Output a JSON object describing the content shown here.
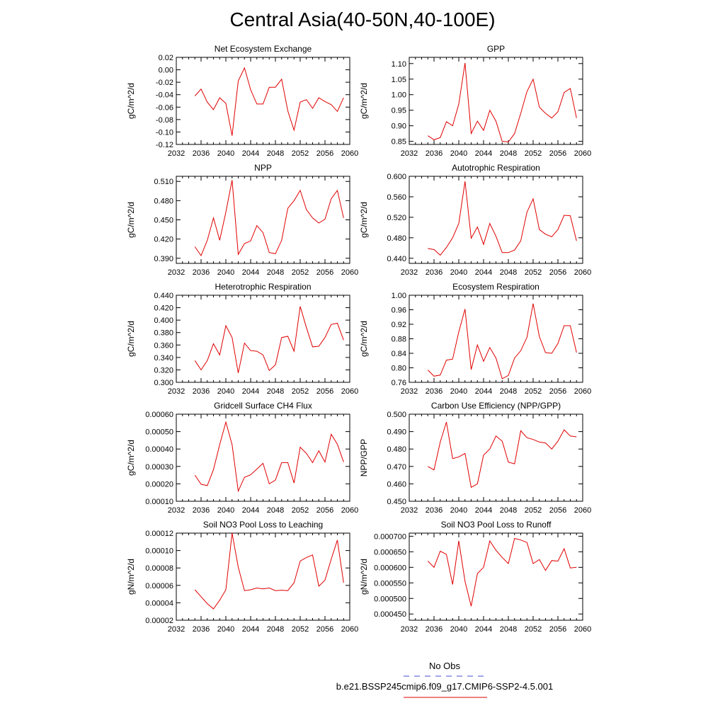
{
  "title": "Central Asia(40-50N,40-100E)",
  "legend": {
    "obs_label": "No Obs",
    "obs_color": "#4a4ad0",
    "model_label": "b.e21.BSSP245cmip6.f09_g17.CMIP6-SSP2-4.5.001",
    "model_color": "#e00000"
  },
  "chart_data": [
    {
      "type": "line",
      "title": "Net Ecosystem Exchange",
      "ylabel": "gC/m^2/d",
      "xlim": [
        2032,
        2060
      ],
      "xticks": [
        "2032",
        "2036",
        "2040",
        "2044",
        "2048",
        "2052",
        "2056",
        "2060"
      ],
      "ylim": [
        -0.12,
        0.02
      ],
      "yticks": [
        "0.02",
        "0.00",
        "-0.02",
        "-0.04",
        "-0.06",
        "-0.08",
        "-0.10",
        "-0.12"
      ],
      "x": [
        2035,
        2036,
        2037,
        2038,
        2039,
        2040,
        2041,
        2042,
        2043,
        2044,
        2045,
        2046,
        2047,
        2048,
        2049,
        2050,
        2051,
        2052,
        2053,
        2054,
        2055,
        2056,
        2057,
        2058,
        2059
      ],
      "values": [
        -0.042,
        -0.031,
        -0.052,
        -0.064,
        -0.045,
        -0.054,
        -0.106,
        -0.018,
        0.003,
        -0.032,
        -0.055,
        -0.055,
        -0.028,
        -0.028,
        -0.015,
        -0.066,
        -0.097,
        -0.052,
        -0.048,
        -0.062,
        -0.045,
        -0.051,
        -0.056,
        -0.067,
        -0.045
      ]
    },
    {
      "type": "line",
      "title": "GPP",
      "ylabel": "gC/m^2/d",
      "xlim": [
        2032,
        2060
      ],
      "xticks": [
        "2032",
        "2036",
        "2040",
        "2044",
        "2048",
        "2052",
        "2056",
        "2060"
      ],
      "ylim": [
        0.84,
        1.12
      ],
      "yticks": [
        "1.10",
        "1.05",
        "1.00",
        "0.95",
        "0.90",
        "0.85"
      ],
      "x": [
        2035,
        2036,
        2037,
        2038,
        2039,
        2040,
        2041,
        2042,
        2043,
        2044,
        2045,
        2046,
        2047,
        2048,
        2049,
        2050,
        2051,
        2052,
        2053,
        2054,
        2055,
        2056,
        2057,
        2058,
        2059
      ],
      "values": [
        0.868,
        0.855,
        0.862,
        0.913,
        0.9,
        0.97,
        1.102,
        0.875,
        0.915,
        0.885,
        0.95,
        0.915,
        0.85,
        0.848,
        0.875,
        0.94,
        1.01,
        1.05,
        0.96,
        0.94,
        0.925,
        0.945,
        1.007,
        1.02,
        0.925
      ]
    },
    {
      "type": "line",
      "title": "NPP",
      "ylabel": "gC/m^2/d",
      "xlim": [
        2032,
        2060
      ],
      "xticks": [
        "2032",
        "2036",
        "2040",
        "2044",
        "2048",
        "2052",
        "2056",
        "2060"
      ],
      "ylim": [
        0.382,
        0.518
      ],
      "yticks": [
        "0.510",
        "0.480",
        "0.450",
        "0.420",
        "0.390"
      ],
      "x": [
        2035,
        2036,
        2037,
        2038,
        2039,
        2040,
        2041,
        2042,
        2043,
        2044,
        2045,
        2046,
        2047,
        2048,
        2049,
        2050,
        2051,
        2052,
        2053,
        2054,
        2055,
        2056,
        2057,
        2058,
        2059
      ],
      "values": [
        0.408,
        0.394,
        0.418,
        0.453,
        0.418,
        0.462,
        0.512,
        0.396,
        0.413,
        0.417,
        0.441,
        0.43,
        0.399,
        0.397,
        0.418,
        0.468,
        0.48,
        0.496,
        0.466,
        0.453,
        0.445,
        0.451,
        0.483,
        0.496,
        0.453
      ]
    },
    {
      "type": "line",
      "title": "Autotrophic Respiration",
      "ylabel": "gC/m^2/d",
      "xlim": [
        2032,
        2060
      ],
      "xticks": [
        "2032",
        "2036",
        "2040",
        "2044",
        "2048",
        "2052",
        "2056",
        "2060"
      ],
      "ylim": [
        0.43,
        0.6
      ],
      "yticks": [
        "0.600",
        "0.560",
        "0.520",
        "0.480",
        "0.440"
      ],
      "x": [
        2035,
        2036,
        2037,
        2038,
        2039,
        2040,
        2041,
        2042,
        2043,
        2044,
        2045,
        2046,
        2047,
        2048,
        2049,
        2050,
        2051,
        2052,
        2053,
        2054,
        2055,
        2056,
        2057,
        2058,
        2059
      ],
      "values": [
        0.459,
        0.457,
        0.446,
        0.461,
        0.48,
        0.508,
        0.59,
        0.479,
        0.501,
        0.467,
        0.508,
        0.483,
        0.451,
        0.451,
        0.456,
        0.474,
        0.53,
        0.556,
        0.496,
        0.487,
        0.482,
        0.496,
        0.524,
        0.523,
        0.474
      ]
    },
    {
      "type": "line",
      "title": "Heterotrophic Respiration",
      "ylabel": "gC/m^2/d",
      "xlim": [
        2032,
        2060
      ],
      "xticks": [
        "2032",
        "2036",
        "2040",
        "2044",
        "2048",
        "2052",
        "2056",
        "2060"
      ],
      "ylim": [
        0.3,
        0.44
      ],
      "yticks": [
        "0.440",
        "0.420",
        "0.400",
        "0.380",
        "0.360",
        "0.340",
        "0.320",
        "0.300"
      ],
      "x": [
        2035,
        2036,
        2037,
        2038,
        2039,
        2040,
        2041,
        2042,
        2043,
        2044,
        2045,
        2046,
        2047,
        2048,
        2049,
        2050,
        2051,
        2052,
        2053,
        2054,
        2055,
        2056,
        2057,
        2058,
        2059
      ],
      "values": [
        0.335,
        0.32,
        0.335,
        0.362,
        0.344,
        0.391,
        0.372,
        0.315,
        0.363,
        0.351,
        0.35,
        0.344,
        0.319,
        0.328,
        0.372,
        0.374,
        0.35,
        0.422,
        0.388,
        0.357,
        0.358,
        0.372,
        0.393,
        0.395,
        0.368
      ]
    },
    {
      "type": "line",
      "title": "Ecosystem Respiration",
      "ylabel": "gC/m^2/d",
      "xlim": [
        2032,
        2060
      ],
      "xticks": [
        "2032",
        "2036",
        "2040",
        "2044",
        "2048",
        "2052",
        "2056",
        "2060"
      ],
      "ylim": [
        0.76,
        1.0
      ],
      "yticks": [
        "1.00",
        "0.96",
        "0.92",
        "0.88",
        "0.84",
        "0.80",
        "0.76"
      ],
      "x": [
        2035,
        2036,
        2037,
        2038,
        2039,
        2040,
        2041,
        2042,
        2043,
        2044,
        2045,
        2046,
        2047,
        2048,
        2049,
        2050,
        2051,
        2052,
        2053,
        2054,
        2055,
        2056,
        2057,
        2058,
        2059
      ],
      "values": [
        0.794,
        0.777,
        0.78,
        0.821,
        0.824,
        0.899,
        0.962,
        0.795,
        0.863,
        0.818,
        0.856,
        0.827,
        0.77,
        0.779,
        0.827,
        0.847,
        0.884,
        0.977,
        0.886,
        0.842,
        0.84,
        0.867,
        0.916,
        0.916,
        0.842
      ]
    },
    {
      "type": "line",
      "title": "Gridcell Surface CH4 Flux",
      "ylabel": "gC/m^2/d",
      "xlim": [
        2032,
        2060
      ],
      "xticks": [
        "2032",
        "2036",
        "2040",
        "2044",
        "2048",
        "2052",
        "2056",
        "2060"
      ],
      "ylim": [
        0.0001,
        0.0006
      ],
      "yticks": [
        "0.00060",
        "0.00050",
        "0.00040",
        "0.00030",
        "0.00020",
        "0.00010"
      ],
      "x": [
        2035,
        2036,
        2037,
        2038,
        2039,
        2040,
        2041,
        2042,
        2043,
        2044,
        2045,
        2046,
        2047,
        2048,
        2049,
        2050,
        2051,
        2052,
        2053,
        2054,
        2055,
        2056,
        2057,
        2058,
        2059
      ],
      "values": [
        0.00025,
        0.000198,
        0.00019,
        0.000282,
        0.000425,
        0.000555,
        0.000425,
        0.000158,
        0.000238,
        0.000252,
        0.000285,
        0.000318,
        0.0002,
        0.000222,
        0.000322,
        0.000322,
        0.000205,
        0.00041,
        0.000375,
        0.000322,
        0.00039,
        0.000325,
        0.000485,
        0.000428,
        0.000325
      ]
    },
    {
      "type": "line",
      "title": "Carbon Use Efficiency (NPP/GPP)",
      "ylabel": "NPP/GPP",
      "xlim": [
        2032,
        2060
      ],
      "xticks": [
        "2032",
        "2036",
        "2040",
        "2044",
        "2048",
        "2052",
        "2056",
        "2060"
      ],
      "ylim": [
        0.45,
        0.5
      ],
      "yticks": [
        "0.500",
        "0.490",
        "0.480",
        "0.470",
        "0.460",
        "0.450"
      ],
      "x": [
        2035,
        2036,
        2037,
        2038,
        2039,
        2040,
        2041,
        2042,
        2043,
        2044,
        2045,
        2046,
        2047,
        2048,
        2049,
        2050,
        2051,
        2052,
        2053,
        2054,
        2055,
        2056,
        2057,
        2058,
        2059
      ],
      "values": [
        0.47,
        0.468,
        0.484,
        0.4955,
        0.4745,
        0.4755,
        0.4775,
        0.458,
        0.46,
        0.4765,
        0.48,
        0.4875,
        0.4845,
        0.4725,
        0.4715,
        0.4905,
        0.4865,
        0.4855,
        0.484,
        0.4835,
        0.48,
        0.4845,
        0.491,
        0.4875,
        0.487
      ]
    },
    {
      "type": "line",
      "title": "Soil NO3 Pool Loss to Leaching",
      "ylabel": "gN/m^2/d",
      "xlim": [
        2032,
        2060
      ],
      "xticks": [
        "2032",
        "2036",
        "2040",
        "2044",
        "2048",
        "2052",
        "2056",
        "2060"
      ],
      "ylim": [
        2e-05,
        0.00012
      ],
      "yticks": [
        "0.00012",
        "0.00010",
        "0.00008",
        "0.00006",
        "0.00004",
        "0.00002"
      ],
      "x": [
        2035,
        2036,
        2037,
        2038,
        2039,
        2040,
        2041,
        2042,
        2043,
        2044,
        2045,
        2046,
        2047,
        2048,
        2049,
        2050,
        2051,
        2052,
        2053,
        2054,
        2055,
        2056,
        2057,
        2058,
        2059
      ],
      "values": [
        5.5e-05,
        4.7e-05,
        3.9e-05,
        3.3e-05,
        4.3e-05,
        5.5e-05,
        0.00012,
        8.1e-05,
        5.4e-05,
        5.5e-05,
        5.7e-05,
        5.6e-05,
        5.7e-05,
        5.4e-05,
        5.45e-05,
        5.4e-05,
        6.3e-05,
        8.8e-05,
        9.2e-05,
        9.5e-05,
        5.9e-05,
        6.6e-05,
        9e-05,
        0.000112,
        6.3e-05
      ]
    },
    {
      "type": "line",
      "title": "Soil NO3 Pool Loss to Runoff",
      "ylabel": "gN/m^2/d",
      "xlim": [
        2032,
        2060
      ],
      "xticks": [
        "2032",
        "2036",
        "2040",
        "2044",
        "2048",
        "2052",
        "2056",
        "2060"
      ],
      "ylim": [
        0.00043,
        0.00071
      ],
      "yticks": [
        "0.000700",
        "0.000650",
        "0.000600",
        "0.000550",
        "0.000500",
        "0.000450"
      ],
      "x": [
        2035,
        2036,
        2037,
        2038,
        2039,
        2040,
        2041,
        2042,
        2043,
        2044,
        2045,
        2046,
        2047,
        2048,
        2049,
        2050,
        2051,
        2052,
        2053,
        2054,
        2055,
        2056,
        2057,
        2058,
        2059
      ],
      "values": [
        0.00062,
        0.0006,
        0.000652,
        0.000642,
        0.000545,
        0.000685,
        0.000555,
        0.000475,
        0.00058,
        0.0006,
        0.000685,
        0.000655,
        0.000632,
        0.000612,
        0.000693,
        0.000688,
        0.00068,
        0.000612,
        0.000625,
        0.00059,
        0.000622,
        0.00062,
        0.00066,
        0.000598,
        0.0006
      ]
    }
  ]
}
